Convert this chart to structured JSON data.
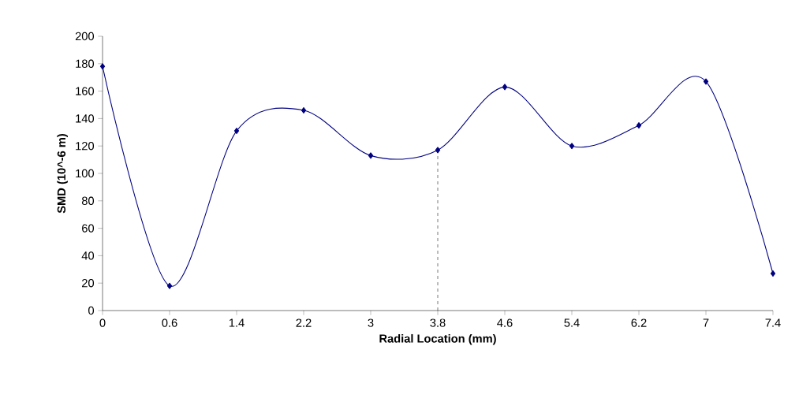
{
  "chart_data": {
    "type": "line",
    "xlabel": "Radial Location (mm)",
    "ylabel": "SMD (10^-6 m)",
    "categories": [
      "0",
      "0.6",
      "1.4",
      "2.2",
      "3",
      "3.8",
      "4.6",
      "5.4",
      "6.2",
      "7",
      "7.4"
    ],
    "series": [
      {
        "color": "#000080",
        "values": [
          178,
          18,
          131,
          146,
          113,
          117,
          163,
          120,
          135,
          167,
          27
        ]
      }
    ],
    "ylim": [
      0,
      200
    ],
    "yticks": [
      0,
      20,
      40,
      60,
      80,
      100,
      120,
      140,
      160,
      180,
      200
    ],
    "marker": "diamond",
    "line_style": "solid",
    "grid": false,
    "ref_lines": [
      {
        "axis": "x",
        "value": "3.8",
        "line_style": "dashed",
        "color": "#000000"
      }
    ]
  }
}
